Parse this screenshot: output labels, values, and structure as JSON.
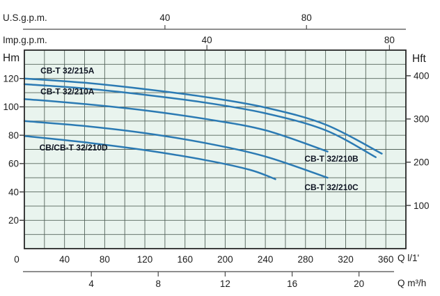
{
  "colors": {
    "curve": "#2b7ab3",
    "plot_bg": "#e9f4ee",
    "grid": "#54635a",
    "frame": "#272727",
    "axis_line": "#4a4a4a",
    "text": "#1c1c1c",
    "series_label": "#0e1422"
  },
  "chart_data": {
    "type": "line",
    "plot": {
      "x_min": 0,
      "x_max": 380,
      "y_min": 0,
      "y_max": 140,
      "grid_x_step": 20,
      "grid_y_step": 10
    },
    "axes": {
      "top_us": {
        "label": "U.S.g.p.m.",
        "ticks": [
          {
            "v": "40",
            "q": 140
          },
          {
            "v": "80",
            "q": 281
          }
        ]
      },
      "top_imp": {
        "label": "Imp.g.p.m.",
        "ticks": [
          {
            "v": "40",
            "q": 181.8
          },
          {
            "v": "80",
            "q": 363.6
          }
        ]
      },
      "left": {
        "label": "Hm",
        "ticks": [
          {
            "v": "20",
            "h": 20
          },
          {
            "v": "40",
            "h": 40
          },
          {
            "v": "60",
            "h": 60
          },
          {
            "v": "80",
            "h": 80
          },
          {
            "v": "100",
            "h": 100
          },
          {
            "v": "120",
            "h": 120
          }
        ]
      },
      "right": {
        "label": "Hft",
        "ticks": [
          {
            "v": "100",
            "h": 30.48
          },
          {
            "v": "200",
            "h": 60.96
          },
          {
            "v": "300",
            "h": 91.44
          },
          {
            "v": "400",
            "h": 121.92
          }
        ]
      },
      "bottom_l1": {
        "label": "Q l/1'",
        "ticks": [
          {
            "v": "0",
            "q": 0
          },
          {
            "v": "40",
            "q": 40
          },
          {
            "v": "80",
            "q": 80
          },
          {
            "v": "120",
            "q": 120
          },
          {
            "v": "160",
            "q": 160
          },
          {
            "v": "200",
            "q": 200
          },
          {
            "v": "240",
            "q": 240
          },
          {
            "v": "280",
            "q": 280
          },
          {
            "v": "320",
            "q": 320
          },
          {
            "v": "360",
            "q": 360
          }
        ]
      },
      "bottom_m3h": {
        "label": "Q m³/h",
        "ticks": [
          {
            "v": "4",
            "q": 66.7
          },
          {
            "v": "8",
            "q": 133.3
          },
          {
            "v": "12",
            "q": 200
          },
          {
            "v": "16",
            "q": 266.7
          },
          {
            "v": "20",
            "q": 333.3
          }
        ]
      }
    },
    "series": [
      {
        "name": "CB-T 32/215A",
        "points": [
          [
            0,
            120
          ],
          [
            60,
            117
          ],
          [
            120,
            112.5
          ],
          [
            180,
            107
          ],
          [
            240,
            99.5
          ],
          [
            300,
            87.5
          ],
          [
            356,
            67
          ]
        ]
      },
      {
        "name": "CB-T 32/210A",
        "points": [
          [
            0,
            116
          ],
          [
            60,
            113
          ],
          [
            120,
            108.5
          ],
          [
            180,
            103
          ],
          [
            240,
            95.5
          ],
          [
            300,
            83.5
          ],
          [
            350,
            64.5
          ]
        ]
      },
      {
        "name": "CB-T 32/210B",
        "points": [
          [
            0,
            105.5
          ],
          [
            60,
            102
          ],
          [
            120,
            97.5
          ],
          [
            180,
            91.5
          ],
          [
            240,
            83.5
          ],
          [
            302,
            68.5
          ]
        ]
      },
      {
        "name": "CB-T 32/210C",
        "points": [
          [
            0,
            90
          ],
          [
            60,
            86.5
          ],
          [
            120,
            81.5
          ],
          [
            180,
            74.5
          ],
          [
            240,
            65
          ],
          [
            302,
            50
          ]
        ]
      },
      {
        "name": "CB/CB-T 32/210D",
        "points": [
          [
            0,
            79.5
          ],
          [
            60,
            75
          ],
          [
            120,
            69.5
          ],
          [
            180,
            62.5
          ],
          [
            225,
            55.5
          ],
          [
            250,
            49
          ]
        ]
      }
    ],
    "series_labels": [
      {
        "text": "CB-T 32/215A",
        "q": 16,
        "h": 125.5
      },
      {
        "text": "CB-T 32/210A",
        "q": 16,
        "h": 110.8
      },
      {
        "text": "CB/CB-T 32/210D",
        "q": 15,
        "h": 71.2
      },
      {
        "text": "CB-T 32/210B",
        "q": 279,
        "h": 63.3
      },
      {
        "text": "CB-T 32/210C",
        "q": 279,
        "h": 43.2
      }
    ]
  }
}
